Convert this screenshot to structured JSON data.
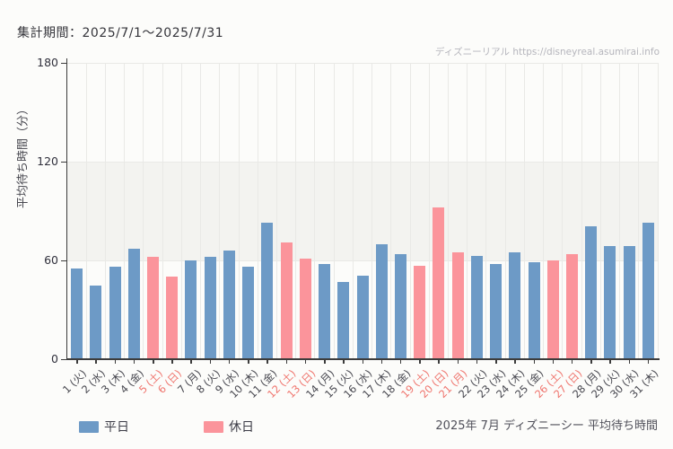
{
  "header": {
    "title": "集計期間：2025/7/1～2025/7/31",
    "watermark": "ディズニーリアル https://disneyreal.asumirai.info"
  },
  "footer": {
    "caption": "2025年 7月 ディズニーシー 平均待ち時間"
  },
  "legend": {
    "weekday_label": "平日",
    "holiday_label": "休日"
  },
  "colors": {
    "weekday_bar": "#6d9ac6",
    "holiday_bar": "#fb949b",
    "weekday_label": "#47474f",
    "holiday_label": "#ef756e",
    "axis": "#3c3c3c",
    "grid": "#e9e9e6",
    "band": "#f3f3f0",
    "ytick_label": "#30303c"
  },
  "chart_data": {
    "type": "bar",
    "title": "2025年 7月 ディズニーシー 平均待ち時間",
    "ylabel": "平均待ち時間（分）",
    "xlabel": "",
    "ylim": [
      0,
      180
    ],
    "yticks": [
      0,
      60,
      120,
      180
    ],
    "shaded_band": [
      60,
      120
    ],
    "grid": true,
    "legend_position": "bottom-left",
    "categories": [
      "1 (火)",
      "2 (水)",
      "3 (木)",
      "4 (金)",
      "5 (土)",
      "6 (日)",
      "7 (月)",
      "8 (火)",
      "9 (水)",
      "10 (木)",
      "11 (金)",
      "12 (土)",
      "13 (日)",
      "14 (月)",
      "15 (火)",
      "16 (水)",
      "17 (木)",
      "18 (金)",
      "19 (土)",
      "20 (日)",
      "21 (月)",
      "22 (火)",
      "23 (水)",
      "24 (木)",
      "25 (金)",
      "26 (土)",
      "27 (日)",
      "28 (月)",
      "29 (火)",
      "30 (水)",
      "31 (木)"
    ],
    "values": [
      55,
      45,
      56,
      67,
      62,
      50,
      60,
      62,
      66,
      56,
      83,
      71,
      61,
      58,
      47,
      51,
      70,
      64,
      57,
      92,
      65,
      63,
      58,
      65,
      59,
      60,
      64,
      81,
      69,
      69,
      83
    ],
    "holiday_days": [
      5,
      6,
      12,
      13,
      19,
      20,
      21,
      26,
      27
    ],
    "series": [
      {
        "name": "平日",
        "color": "#6d9ac6"
      },
      {
        "name": "休日",
        "color": "#fb949b"
      }
    ]
  }
}
